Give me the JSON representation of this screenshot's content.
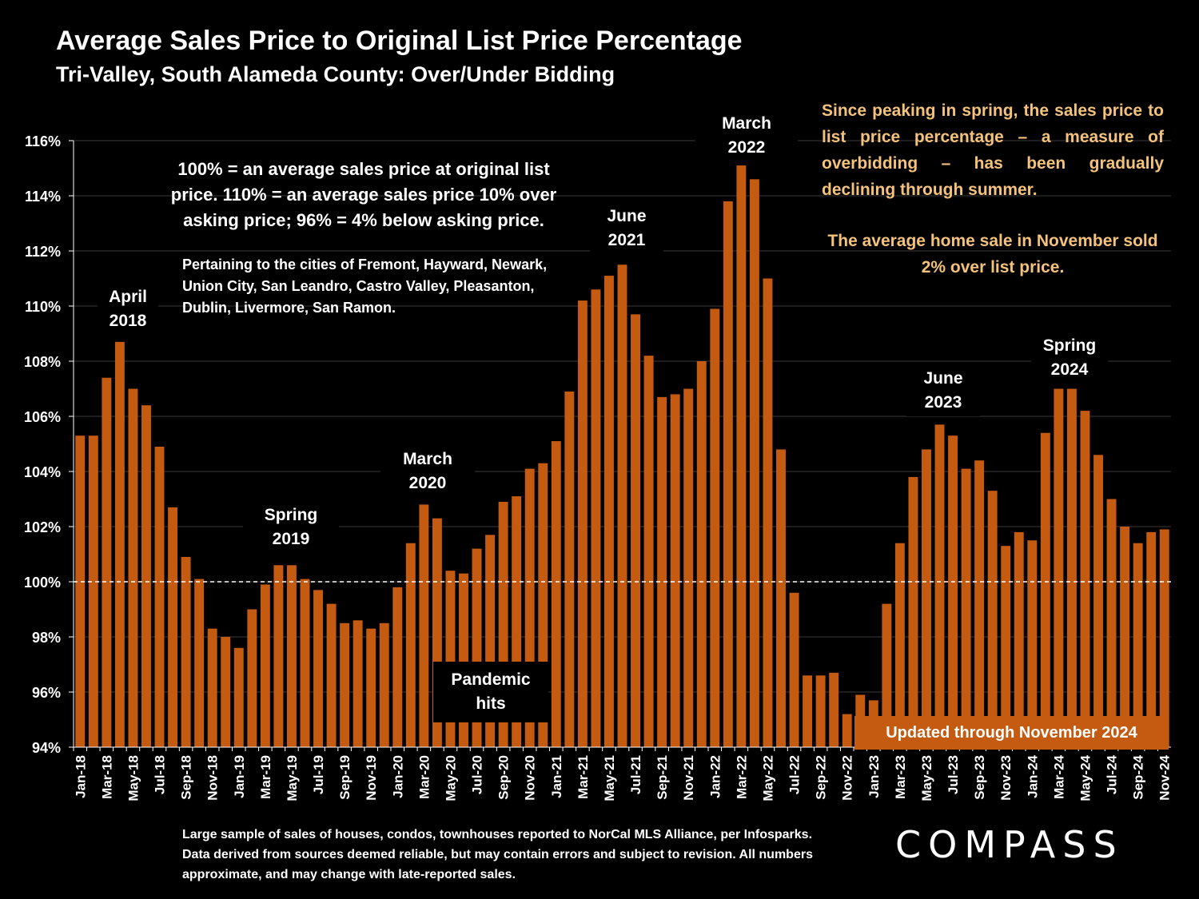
{
  "header": {
    "title": "Average Sales Price to Original List Price Percentage",
    "subtitle": "Tri-Valley, South Alameda County:  Over/Under Bidding"
  },
  "notes": {
    "main": "100% = an average sales price at original list price. 110% = an average sales price 10% over asking price; 96% = 4% below asking price.",
    "cities": "Pertaining to the cities of Fremont, Hayward, Newark, Union City, San Leandro, Castro Valley, Pleasanton, Dublin, Livermore, San Ramon.",
    "side_1": "Since peaking in spring, the sales price to list price percentage – a measure of overbidding – has been gradually declining through summer.",
    "side_2": "The average home sale in November sold 2% over list price.",
    "updated": "Updated through November 2024",
    "pandemic": "Pandemic\nhits",
    "footer": "Large sample of sales of houses, condos, townhouses reported to NorCal MLS Alliance, per Infosparks. Data derived from sources deemed reliable, but may contain errors and subject to revision. All numbers approximate, and may change with late-reported sales.",
    "logo": "COMPASS"
  },
  "annotations": {
    "april_2018": "April\n2018",
    "spring_2019": "Spring\n2019",
    "march_2020": "March\n2020",
    "june_2021": "June\n2021",
    "march_2022": "March\n2022",
    "june_2023": "June\n2023",
    "spring_2024": "Spring\n2024"
  },
  "colors": {
    "bar": "#c55a11",
    "grid": "#3a3a3a",
    "reference_line": "#ffffff",
    "side_text": "#f4c27a"
  },
  "chart_data": {
    "type": "bar",
    "ylim": [
      94,
      116
    ],
    "y_ticks": [
      "94%",
      "96%",
      "98%",
      "100%",
      "102%",
      "104%",
      "106%",
      "108%",
      "110%",
      "112%",
      "114%",
      "116%"
    ],
    "reference_line": 100,
    "grid": true,
    "categories": [
      "Jan-18",
      "Feb-18",
      "Mar-18",
      "Apr-18",
      "May-18",
      "Jun-18",
      "Jul-18",
      "Aug-18",
      "Sep-18",
      "Oct-18",
      "Nov-18",
      "Dec-18",
      "Jan-19",
      "Feb-19",
      "Mar-19",
      "Apr-19",
      "May-19",
      "Jun-19",
      "Jul-19",
      "Aug-19",
      "Sep-19",
      "Oct-19",
      "Nov-19",
      "Dec-19",
      "Jan-20",
      "Feb-20",
      "Mar-20",
      "Apr-20",
      "May-20",
      "Jun-20",
      "Jul-20",
      "Aug-20",
      "Sep-20",
      "Oct-20",
      "Nov-20",
      "Dec-20",
      "Jan-21",
      "Feb-21",
      "Mar-21",
      "Apr-21",
      "May-21",
      "Jun-21",
      "Jul-21",
      "Aug-21",
      "Sep-21",
      "Oct-21",
      "Nov-21",
      "Dec-21",
      "Jan-22",
      "Feb-22",
      "Mar-22",
      "Apr-22",
      "May-22",
      "Jun-22",
      "Jul-22",
      "Aug-22",
      "Sep-22",
      "Oct-22",
      "Nov-22",
      "Dec-22",
      "Jan-23",
      "Feb-23",
      "Mar-23",
      "Apr-23",
      "May-23",
      "Jun-23",
      "Jul-23",
      "Aug-23",
      "Sep-23",
      "Oct-23",
      "Nov-23",
      "Dec-23",
      "Jan-24",
      "Feb-24",
      "Mar-24",
      "Apr-24",
      "May-24",
      "Jun-24",
      "Jul-24",
      "Aug-24",
      "Sep-24",
      "Oct-24",
      "Nov-24"
    ],
    "values": [
      105.3,
      105.3,
      107.4,
      108.7,
      107.0,
      106.4,
      104.9,
      102.7,
      100.9,
      100.1,
      98.3,
      98.0,
      97.6,
      99.0,
      99.9,
      100.6,
      100.6,
      100.1,
      99.7,
      99.2,
      98.5,
      98.6,
      98.3,
      98.5,
      99.8,
      101.4,
      102.8,
      102.3,
      100.4,
      100.3,
      101.2,
      101.7,
      102.9,
      103.1,
      104.1,
      104.3,
      105.1,
      106.9,
      110.2,
      110.6,
      111.1,
      111.5,
      109.7,
      108.2,
      106.7,
      106.8,
      107.0,
      108.0,
      109.9,
      113.8,
      115.1,
      114.6,
      111.0,
      104.8,
      99.6,
      96.6,
      96.6,
      96.7,
      95.2,
      95.9,
      95.7,
      99.2,
      101.4,
      103.8,
      104.8,
      105.7,
      105.3,
      104.1,
      104.4,
      103.3,
      101.3,
      101.8,
      101.5,
      105.4,
      107.0,
      107.0,
      106.2,
      104.6,
      103.0,
      102.0,
      101.4,
      101.8,
      101.9
    ]
  }
}
